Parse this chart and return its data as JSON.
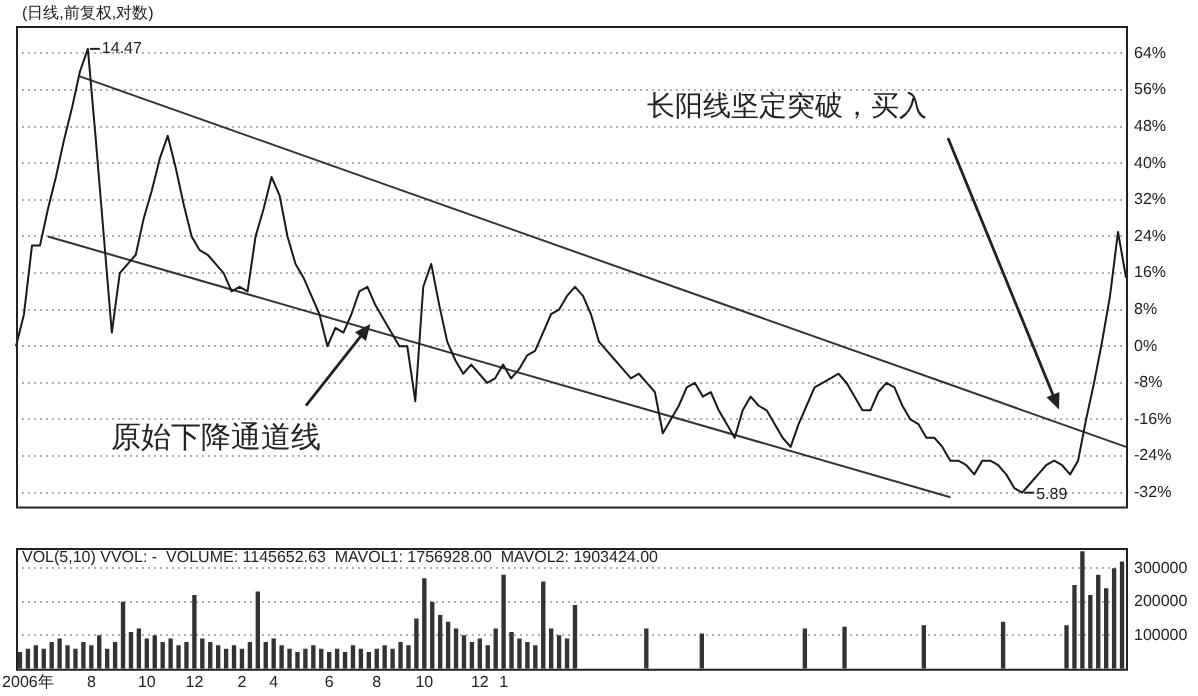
{
  "chart_data": [
    {
      "type": "line",
      "title": "(日线,前复权,对数)",
      "annotations": [
        "14.47",
        "5.89",
        "长阳线坚定突破，买入",
        "原始下降通道线"
      ],
      "categories": [
        null,
        null,
        null,
        null,
        null,
        null,
        null,
        null,
        null,
        null,
        null,
        null,
        null,
        null,
        null,
        null,
        null,
        null,
        null,
        null,
        null,
        null,
        null,
        null,
        null,
        null,
        null,
        null,
        null,
        null,
        null,
        null,
        null,
        null,
        null,
        null,
        null,
        null,
        null,
        null,
        null,
        null,
        null,
        null,
        null,
        null,
        null,
        null,
        null,
        null,
        null,
        null,
        null,
        null,
        null,
        null,
        null,
        null,
        null,
        null,
        null,
        null,
        null,
        null,
        null,
        null,
        null,
        null,
        null,
        null,
        null,
        null,
        null,
        null,
        null,
        null,
        null,
        null,
        null,
        null,
        null,
        null,
        null,
        null,
        null,
        null,
        null,
        null,
        null,
        null,
        null,
        null,
        null,
        null,
        null,
        null,
        null,
        null,
        null,
        null,
        null,
        null,
        null,
        null,
        null,
        null,
        null,
        null,
        null,
        null,
        null,
        null,
        null,
        null,
        null,
        null,
        null,
        null,
        null,
        null,
        null,
        null,
        null,
        null,
        null,
        null,
        null,
        null,
        null,
        null,
        null,
        null,
        null,
        null,
        null,
        null,
        null,
        null,
        null,
        null
      ],
      "series": [
        {
          "color": "#1a1a1a",
          "values": [
            0,
            7,
            22,
            22,
            30,
            37,
            45,
            52,
            60,
            65,
            45,
            24,
            3,
            16,
            18,
            20,
            28,
            34,
            41,
            46,
            39,
            31,
            24,
            21,
            20,
            18,
            16,
            12,
            13,
            12,
            24,
            30,
            37,
            33,
            24,
            18,
            15,
            11,
            7,
            0,
            4,
            3,
            7,
            12,
            13,
            9,
            6,
            3,
            0,
            0,
            -12,
            13,
            18,
            9,
            1,
            -3,
            -6,
            -4,
            -6,
            -8,
            -7,
            -4,
            -7,
            -5,
            -2,
            -1,
            3,
            7,
            8,
            11,
            13,
            11,
            7,
            1,
            -1,
            -3,
            -5,
            -7,
            -6,
            -8,
            -10,
            -19,
            -16,
            -13,
            -9,
            -8,
            -11,
            -10,
            -14,
            -17,
            -20,
            -14,
            -11,
            -13,
            -14,
            -17,
            -20,
            -22,
            -17,
            -13,
            -9,
            -8,
            -7,
            -6,
            -8,
            -11,
            -14,
            -14,
            -10,
            -8,
            -9,
            -13,
            -16,
            -17,
            -20,
            -20,
            -22,
            -25,
            -25,
            -26,
            -28,
            -25,
            -25,
            -26,
            -28,
            -31,
            -32,
            -30,
            -28,
            -26,
            -25,
            -26,
            -28,
            -25,
            -16,
            -8,
            1,
            11,
            25,
            15
          ]
        },
        {
          "type": "line",
          "color": "#333333",
          "values": [
            null,
            null,
            null,
            null,
            null,
            null,
            null,
            null,
            59,
            null,
            null,
            null,
            null,
            null,
            null,
            null,
            null,
            null,
            null,
            null,
            null,
            null,
            null,
            null,
            null,
            null,
            null,
            null,
            null,
            null,
            null,
            null,
            null,
            null,
            null,
            null,
            null,
            null,
            null,
            null,
            null,
            null,
            null,
            null,
            null,
            null,
            null,
            null,
            null,
            null,
            null,
            null,
            null,
            null,
            null,
            null,
            null,
            null,
            null,
            null,
            null,
            null,
            null,
            null,
            null,
            null,
            null,
            null,
            null,
            null,
            null,
            null,
            null,
            null,
            null,
            null,
            null,
            null,
            null,
            null,
            null,
            null,
            null,
            null,
            null,
            null,
            null,
            null,
            null,
            null,
            null,
            null,
            null,
            null,
            null,
            null,
            null,
            null,
            null,
            null,
            null,
            null,
            null,
            null,
            null,
            null,
            null,
            null,
            null,
            null,
            null,
            null,
            null,
            null,
            null,
            null,
            null,
            null,
            null,
            null,
            null,
            null,
            null,
            null,
            null,
            null,
            null,
            null,
            null,
            null,
            null,
            null,
            null,
            null,
            null,
            null,
            null,
            null,
            null,
            -22
          ]
        },
        {
          "type": "line",
          "color": "#333333",
          "values": [
            null,
            null,
            null,
            null,
            24,
            null,
            null,
            null,
            null,
            null,
            null,
            null,
            null,
            null,
            null,
            null,
            null,
            null,
            null,
            null,
            null,
            null,
            null,
            null,
            null,
            null,
            null,
            null,
            null,
            null,
            null,
            null,
            null,
            null,
            null,
            null,
            null,
            null,
            null,
            null,
            null,
            null,
            null,
            null,
            null,
            null,
            null,
            null,
            null,
            null,
            null,
            null,
            null,
            null,
            null,
            null,
            null,
            null,
            null,
            null,
            null,
            null,
            null,
            null,
            null,
            null,
            null,
            null,
            null,
            null,
            null,
            null,
            null,
            null,
            null,
            null,
            null,
            null,
            null,
            null,
            null,
            null,
            null,
            null,
            null,
            null,
            null,
            null,
            null,
            null,
            null,
            null,
            null,
            null,
            null,
            null,
            null,
            null,
            null,
            null,
            null,
            null,
            null,
            null,
            null,
            null,
            null,
            null,
            null,
            null,
            null,
            null,
            null,
            null,
            null,
            null,
            null,
            -33,
            null,
            null,
            null,
            null,
            null,
            null,
            null,
            null,
            null,
            null,
            null,
            null,
            null,
            null,
            null,
            null,
            null,
            null,
            null,
            null,
            null,
            null
          ]
        }
      ],
      "ylim": [
        -35,
        70
      ],
      "yticks": [
        {
          "value": 64,
          "label": "64%"
        },
        {
          "value": 56,
          "label": "56%"
        },
        {
          "value": 48,
          "label": "48%"
        },
        {
          "value": 40,
          "label": "40%"
        },
        {
          "value": 32,
          "label": "32%"
        },
        {
          "value": 24,
          "label": "24%"
        },
        {
          "value": 16,
          "label": "16%"
        },
        {
          "value": 8,
          "label": "8%"
        },
        {
          "value": 0,
          "label": "0%"
        },
        {
          "value": -8,
          "label": "-8%"
        },
        {
          "value": -16,
          "label": "-16%"
        },
        {
          "value": -24,
          "label": "-24%"
        },
        {
          "value": -32,
          "label": "-32%"
        }
      ],
      "grid": "y",
      "tick_labels": "y",
      "marker": "none"
    },
    {
      "type": "bar",
      "title": "VOL(5,10) VVOL: -  VOLUME: 1145652.63  MAVOL1: 1756928.00  MAVOL2: 1903424.00",
      "categories": [
        null,
        "2006年",
        null,
        null,
        null,
        null,
        null,
        null,
        null,
        "8",
        null,
        null,
        null,
        null,
        null,
        null,
        "10",
        null,
        null,
        null,
        null,
        null,
        "12",
        null,
        null,
        null,
        null,
        null,
        "2",
        null,
        null,
        null,
        "4",
        null,
        null,
        null,
        null,
        null,
        null,
        "6",
        null,
        null,
        null,
        null,
        null,
        "8",
        null,
        null,
        null,
        null,
        null,
        "10",
        null,
        null,
        null,
        null,
        null,
        null,
        "12",
        null,
        null,
        "1",
        null,
        null,
        null,
        null,
        null,
        null,
        null,
        null,
        null,
        null,
        null,
        null,
        null,
        null,
        null,
        null,
        null,
        null,
        null,
        null,
        null,
        null,
        null,
        null,
        null,
        null,
        null,
        null,
        null,
        null,
        null,
        null,
        null,
        null,
        null,
        null,
        null,
        null,
        null,
        null,
        null,
        null,
        null,
        null,
        null,
        null,
        null,
        null,
        null,
        null,
        null,
        null,
        null,
        null,
        null,
        null,
        null,
        null,
        null,
        null,
        null,
        null,
        null,
        null,
        null,
        null,
        null,
        null,
        null,
        null,
        null,
        null,
        null,
        null,
        null,
        null,
        null,
        null
      ],
      "color": "#333333",
      "values": [
        50000,
        60000,
        70000,
        60000,
        80000,
        90000,
        70000,
        60000,
        80000,
        70000,
        100000,
        60000,
        80000,
        200000,
        110000,
        120000,
        90000,
        100000,
        80000,
        90000,
        70000,
        80000,
        220000,
        90000,
        80000,
        70000,
        60000,
        70000,
        60000,
        80000,
        230000,
        80000,
        90000,
        70000,
        60000,
        50000,
        60000,
        70000,
        60000,
        50000,
        60000,
        50000,
        70000,
        60000,
        50000,
        60000,
        70000,
        60000,
        80000,
        70000,
        150000,
        270000,
        200000,
        160000,
        140000,
        120000,
        100000,
        80000,
        90000,
        70000,
        120000,
        280000,
        110000,
        90000,
        80000,
        70000,
        260000,
        120000,
        100000,
        90000,
        190000,
        null,
        null,
        null,
        null,
        null,
        null,
        null,
        null,
        120000,
        null,
        null,
        null,
        null,
        null,
        null,
        105000,
        null,
        null,
        null,
        null,
        null,
        null,
        null,
        null,
        null,
        null,
        null,
        null,
        120000,
        null,
        null,
        null,
        null,
        125000,
        null,
        null,
        null,
        null,
        null,
        null,
        null,
        null,
        null,
        130000,
        null,
        null,
        null,
        null,
        null,
        null,
        null,
        null,
        null,
        140000,
        null,
        null,
        null,
        null,
        null,
        null,
        null,
        130000,
        250000,
        350000,
        220000,
        280000,
        240000,
        300000,
        320000
      ],
      "ylim": [
        0,
        360000
      ],
      "yticks": [
        100000,
        200000,
        300000
      ],
      "grid": "y"
    }
  ]
}
